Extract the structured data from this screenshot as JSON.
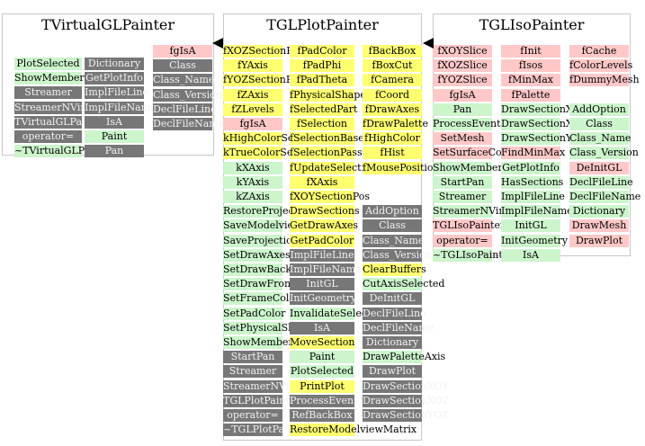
{
  "colors": {
    "public_method": "#ccf5cc",
    "inherited_method": "#777777",
    "protected": "#ffff70",
    "private": "#ffc8c8",
    "border": "#c8c8c8",
    "arrow": "#000000"
  },
  "classes": [
    {
      "title": "TVirtualGLPainter",
      "columns": [
        {
          "items": [
            {
              "text": "PlotSelected",
              "c": "g"
            },
            {
              "text": "ShowMembers",
              "c": "g"
            },
            {
              "text": "Streamer",
              "c": "d"
            },
            {
              "text": "StreamerNVirtual",
              "c": "d"
            },
            {
              "text": "TVirtualGLPainter",
              "c": "d"
            },
            {
              "text": "operator=",
              "c": "d"
            },
            {
              "text": "~TVirtualGLPainter",
              "c": "g"
            }
          ]
        },
        {
          "items": [
            {
              "text": "Dictionary",
              "c": "d"
            },
            {
              "text": "GetPlotInfo",
              "c": "d"
            },
            {
              "text": "ImplFileLine",
              "c": "d"
            },
            {
              "text": "ImplFileName",
              "c": "d"
            },
            {
              "text": "IsA",
              "c": "d"
            },
            {
              "text": "Paint",
              "c": "g"
            },
            {
              "text": "Pan",
              "c": "d"
            }
          ]
        },
        {
          "items": [
            {
              "text": "fgIsA",
              "c": "r"
            },
            {
              "text": "Class",
              "c": "d"
            },
            {
              "text": "Class_Name",
              "c": "d"
            },
            {
              "text": "Class_Version",
              "c": "d"
            },
            {
              "text": "DeclFileLine",
              "c": "d"
            },
            {
              "text": "DeclFileName",
              "c": "d"
            }
          ]
        }
      ]
    },
    {
      "title": "TGLPlotPainter",
      "columns": [
        {
          "items": [
            {
              "text": "fXOZSectionPos",
              "c": "y"
            },
            {
              "text": "fYAxis",
              "c": "y"
            },
            {
              "text": "fYOZSectionPos",
              "c": "y"
            },
            {
              "text": "fZAxis",
              "c": "y"
            },
            {
              "text": "fZLevels",
              "c": "y"
            },
            {
              "text": "fgIsA",
              "c": "r"
            },
            {
              "text": "kHighColorSelectionBase",
              "c": "y"
            },
            {
              "text": "kTrueColorSelectionBase",
              "c": "y"
            },
            {
              "text": "kXAxis",
              "c": "g"
            },
            {
              "text": "kYAxis",
              "c": "g"
            },
            {
              "text": "kZAxis",
              "c": "g"
            },
            {
              "text": "RestoreProjectionMatrix",
              "c": "g"
            },
            {
              "text": "SaveModelviewMatrix",
              "c": "g"
            },
            {
              "text": "SaveProjectionMatrix",
              "c": "g"
            },
            {
              "text": "SetDrawAxes",
              "c": "g"
            },
            {
              "text": "SetDrawBackBox",
              "c": "g"
            },
            {
              "text": "SetDrawFrontBox",
              "c": "g"
            },
            {
              "text": "SetFrameColor",
              "c": "g"
            },
            {
              "text": "SetPadColor",
              "c": "g"
            },
            {
              "text": "SetPhysicalShapeColor",
              "c": "g"
            },
            {
              "text": "ShowMembers",
              "c": "g"
            },
            {
              "text": "StartPan",
              "c": "d"
            },
            {
              "text": "Streamer",
              "c": "d"
            },
            {
              "text": "StreamerNVirtual",
              "c": "d"
            },
            {
              "text": "TGLPlotPainter",
              "c": "d"
            },
            {
              "text": "operator=",
              "c": "d"
            },
            {
              "text": "~TGLPlotPainter",
              "c": "d"
            }
          ]
        },
        {
          "items": [
            {
              "text": "fPadColor",
              "c": "y"
            },
            {
              "text": "fPadPhi",
              "c": "y"
            },
            {
              "text": "fPadTheta",
              "c": "y"
            },
            {
              "text": "fPhysicalShapeColor",
              "c": "y"
            },
            {
              "text": "fSelectedPart",
              "c": "y"
            },
            {
              "text": "fSelection",
              "c": "y"
            },
            {
              "text": "fSelectionBase",
              "c": "y"
            },
            {
              "text": "fSelectionPass",
              "c": "y"
            },
            {
              "text": "fUpdateSelection",
              "c": "y"
            },
            {
              "text": "fXAxis",
              "c": "y"
            },
            {
              "text": "fXOYSectionPos",
              "c": "y"
            },
            {
              "text": "DrawSections",
              "c": "y"
            },
            {
              "text": "GetDrawAxes",
              "c": "y"
            },
            {
              "text": "GetPadColor",
              "c": "y"
            },
            {
              "text": "ImplFileLine",
              "c": "d"
            },
            {
              "text": "ImplFileName",
              "c": "d"
            },
            {
              "text": "InitGL",
              "c": "d"
            },
            {
              "text": "InitGeometry",
              "c": "d"
            },
            {
              "text": "InvalidateSelection",
              "c": "g"
            },
            {
              "text": "IsA",
              "c": "d"
            },
            {
              "text": "MoveSection",
              "c": "y"
            },
            {
              "text": "Paint",
              "c": "g"
            },
            {
              "text": "PlotSelected",
              "c": "g"
            },
            {
              "text": "PrintPlot",
              "c": "y"
            },
            {
              "text": "ProcessEvent",
              "c": "d"
            },
            {
              "text": "RefBackBox",
              "c": "d"
            },
            {
              "text": "RestoreModelviewMatrix",
              "c": "y"
            }
          ]
        },
        {
          "items": [
            {
              "text": "fBackBox",
              "c": "y"
            },
            {
              "text": "fBoxCut",
              "c": "y"
            },
            {
              "text": "fCamera",
              "c": "y"
            },
            {
              "text": "fCoord",
              "c": "y"
            },
            {
              "text": "fDrawAxes",
              "c": "y"
            },
            {
              "text": "fDrawPalette",
              "c": "y"
            },
            {
              "text": "fHighColor",
              "c": "y"
            },
            {
              "text": "fHist",
              "c": "y"
            },
            {
              "text": "fMousePosition",
              "c": "y"
            },
            {
              "text": "",
              "c": "w"
            },
            {
              "text": "",
              "c": "w"
            },
            {
              "text": "AddOption",
              "c": "d"
            },
            {
              "text": "Class",
              "c": "d"
            },
            {
              "text": "Class_Name",
              "c": "d"
            },
            {
              "text": "Class_Version",
              "c": "d"
            },
            {
              "text": "ClearBuffers",
              "c": "y"
            },
            {
              "text": "CutAxisSelected",
              "c": "g"
            },
            {
              "text": "DeInitGL",
              "c": "d"
            },
            {
              "text": "DeclFileLine",
              "c": "d"
            },
            {
              "text": "DeclFileName",
              "c": "d"
            },
            {
              "text": "Dictionary",
              "c": "d"
            },
            {
              "text": "DrawPaletteAxis",
              "c": "g"
            },
            {
              "text": "DrawPlot",
              "c": "d"
            },
            {
              "text": "DrawSectionXOY",
              "c": "d"
            },
            {
              "text": "DrawSectionXOZ",
              "c": "d"
            },
            {
              "text": "DrawSectionYOZ",
              "c": "d"
            },
            {
              "text": "",
              "c": "w"
            }
          ]
        }
      ]
    },
    {
      "title": "TGLIsoPainter",
      "columns": [
        {
          "items": [
            {
              "text": "fXOYSlice",
              "c": "r"
            },
            {
              "text": "fXOZSlice",
              "c": "r"
            },
            {
              "text": "fYOZSlice",
              "c": "r"
            },
            {
              "text": "fgIsA",
              "c": "r"
            },
            {
              "text": "Pan",
              "c": "g"
            },
            {
              "text": "ProcessEvent",
              "c": "g"
            },
            {
              "text": "SetMesh",
              "c": "r"
            },
            {
              "text": "SetSurfaceColor",
              "c": "r"
            },
            {
              "text": "ShowMembers",
              "c": "g"
            },
            {
              "text": "StartPan",
              "c": "g"
            },
            {
              "text": "Streamer",
              "c": "g"
            },
            {
              "text": "StreamerNVirtual",
              "c": "g"
            },
            {
              "text": "TGLIsoPainter",
              "c": "r"
            },
            {
              "text": "operator=",
              "c": "r"
            },
            {
              "text": "~TGLIsoPainter",
              "c": "g"
            }
          ]
        },
        {
          "items": [
            {
              "text": "fInit",
              "c": "r"
            },
            {
              "text": "fIsos",
              "c": "r"
            },
            {
              "text": "fMinMax",
              "c": "r"
            },
            {
              "text": "fPalette",
              "c": "r"
            },
            {
              "text": "DrawSectionXOY",
              "c": "g"
            },
            {
              "text": "DrawSectionXOZ",
              "c": "g"
            },
            {
              "text": "DrawSectionYOZ",
              "c": "g"
            },
            {
              "text": "FindMinMax",
              "c": "r"
            },
            {
              "text": "GetPlotInfo",
              "c": "g"
            },
            {
              "text": "HasSections",
              "c": "g"
            },
            {
              "text": "ImplFileLine",
              "c": "g"
            },
            {
              "text": "ImplFileName",
              "c": "g"
            },
            {
              "text": "InitGL",
              "c": "g"
            },
            {
              "text": "InitGeometry",
              "c": "g"
            },
            {
              "text": "IsA",
              "c": "g"
            }
          ]
        },
        {
          "items": [
            {
              "text": "fCache",
              "c": "r"
            },
            {
              "text": "fColorLevels",
              "c": "r"
            },
            {
              "text": "fDummyMesh",
              "c": "r"
            },
            {
              "text": "",
              "c": "w"
            },
            {
              "text": "AddOption",
              "c": "g"
            },
            {
              "text": "Class",
              "c": "g"
            },
            {
              "text": "Class_Name",
              "c": "g"
            },
            {
              "text": "Class_Version",
              "c": "g"
            },
            {
              "text": "DeInitGL",
              "c": "r"
            },
            {
              "text": "DeclFileLine",
              "c": "g"
            },
            {
              "text": "DeclFileName",
              "c": "g"
            },
            {
              "text": "Dictionary",
              "c": "g"
            },
            {
              "text": "DrawMesh",
              "c": "r"
            },
            {
              "text": "DrawPlot",
              "c": "r"
            }
          ]
        }
      ]
    }
  ]
}
